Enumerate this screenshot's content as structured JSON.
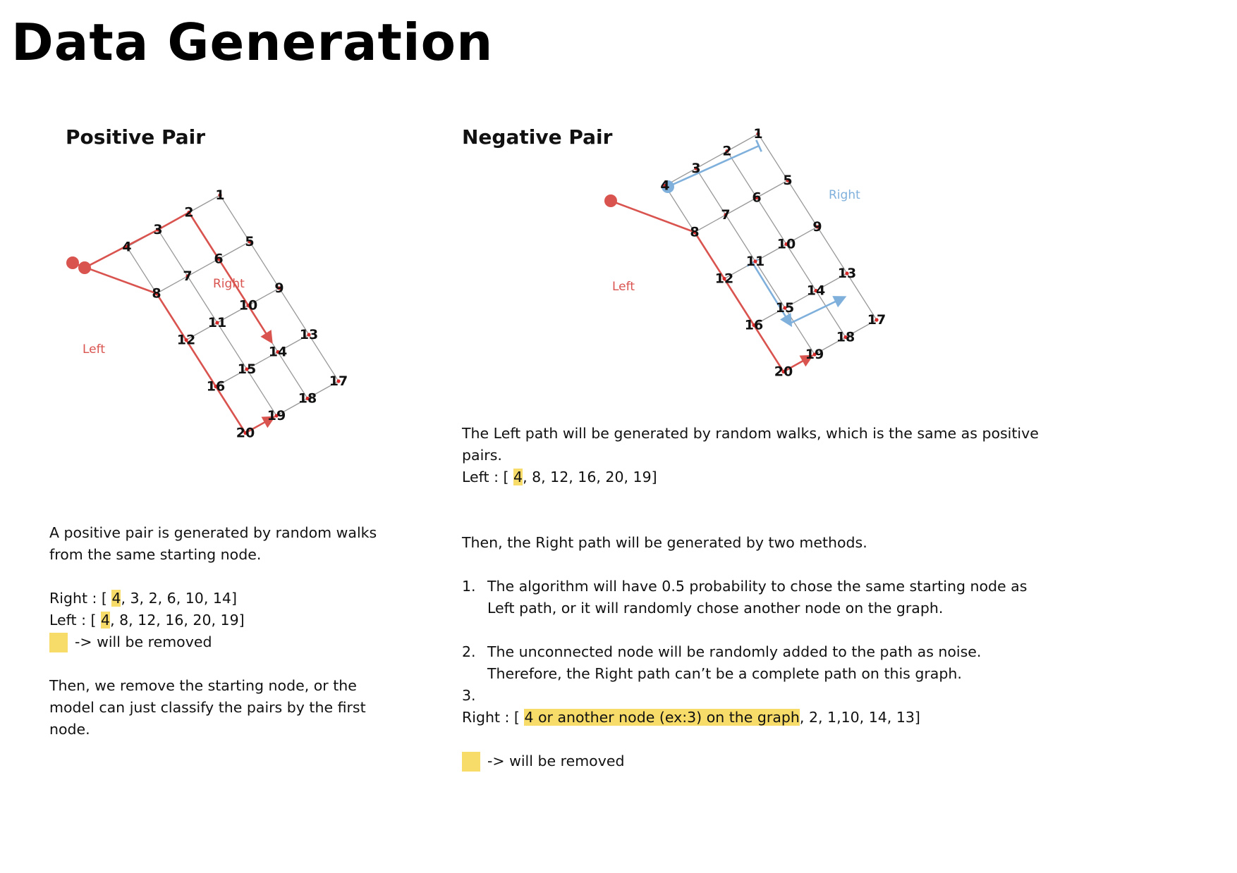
{
  "title": "Data Generation",
  "positive": {
    "heading": "Positive Pair",
    "path_labels": {
      "right": "Right",
      "left": "Left"
    },
    "desc_line1": "A positive pair is generated by random walks",
    "desc_line2": "from the same starting node.",
    "right_prefix": "Right : [ ",
    "right_start": "4",
    "right_rest": ", 3, 2, 6, 10, 14]",
    "left_prefix": "Left :  [ ",
    "left_start": "4",
    "left_rest": ", 8, 12, 16, 20, 19]",
    "legend": "-> will be removed",
    "note_line1": "Then, we remove the starting node, or the",
    "note_line2": "model can just classify the pairs by the first",
    "note_line3": "node."
  },
  "negative": {
    "heading": "Negative Pair",
    "path_labels": {
      "right": "Right",
      "left": "Left"
    },
    "left_desc_line1": "The Left path will be generated by random walks, which is the same as positive",
    "left_desc_line2": "pairs.",
    "left_prefix": "Left :  [ ",
    "left_start": "4",
    "left_rest": ", 8, 12, 16, 20, 19]",
    "then_text": "Then, the Right path will be generated by two methods.",
    "item1_num": "1.",
    "item1_line1": "The algorithm will have 0.5 probability to chose the same starting node as",
    "item1_line2": "Left path, or it will randomly chose another node on the graph.",
    "item2_num": "2.",
    "item2_line1": "The unconnected node will be randomly added to the path as noise.",
    "item2_line2": "Therefore, the Right path can’t be a complete path on this graph.",
    "item3_num": "3.",
    "right_prefix": "Right : [ ",
    "right_highlight": "4 or another node (ex:3) on the graph",
    "right_rest": ", 2, 1,10, 14, 13]",
    "legend": "-> will be removed"
  },
  "graph": {
    "node_labels": [
      "1",
      "2",
      "3",
      "4",
      "5",
      "6",
      "7",
      "8",
      "9",
      "10",
      "11",
      "12",
      "13",
      "14",
      "15",
      "16",
      "17",
      "18",
      "19",
      "20"
    ]
  },
  "colors": {
    "highlight": "#f8dc6a",
    "left_path": "#d9534f",
    "right_path_positive": "#d9534f",
    "right_path_negative": "#7fb0dc",
    "edge": "#999999",
    "node_dot": "#d62a2a"
  }
}
